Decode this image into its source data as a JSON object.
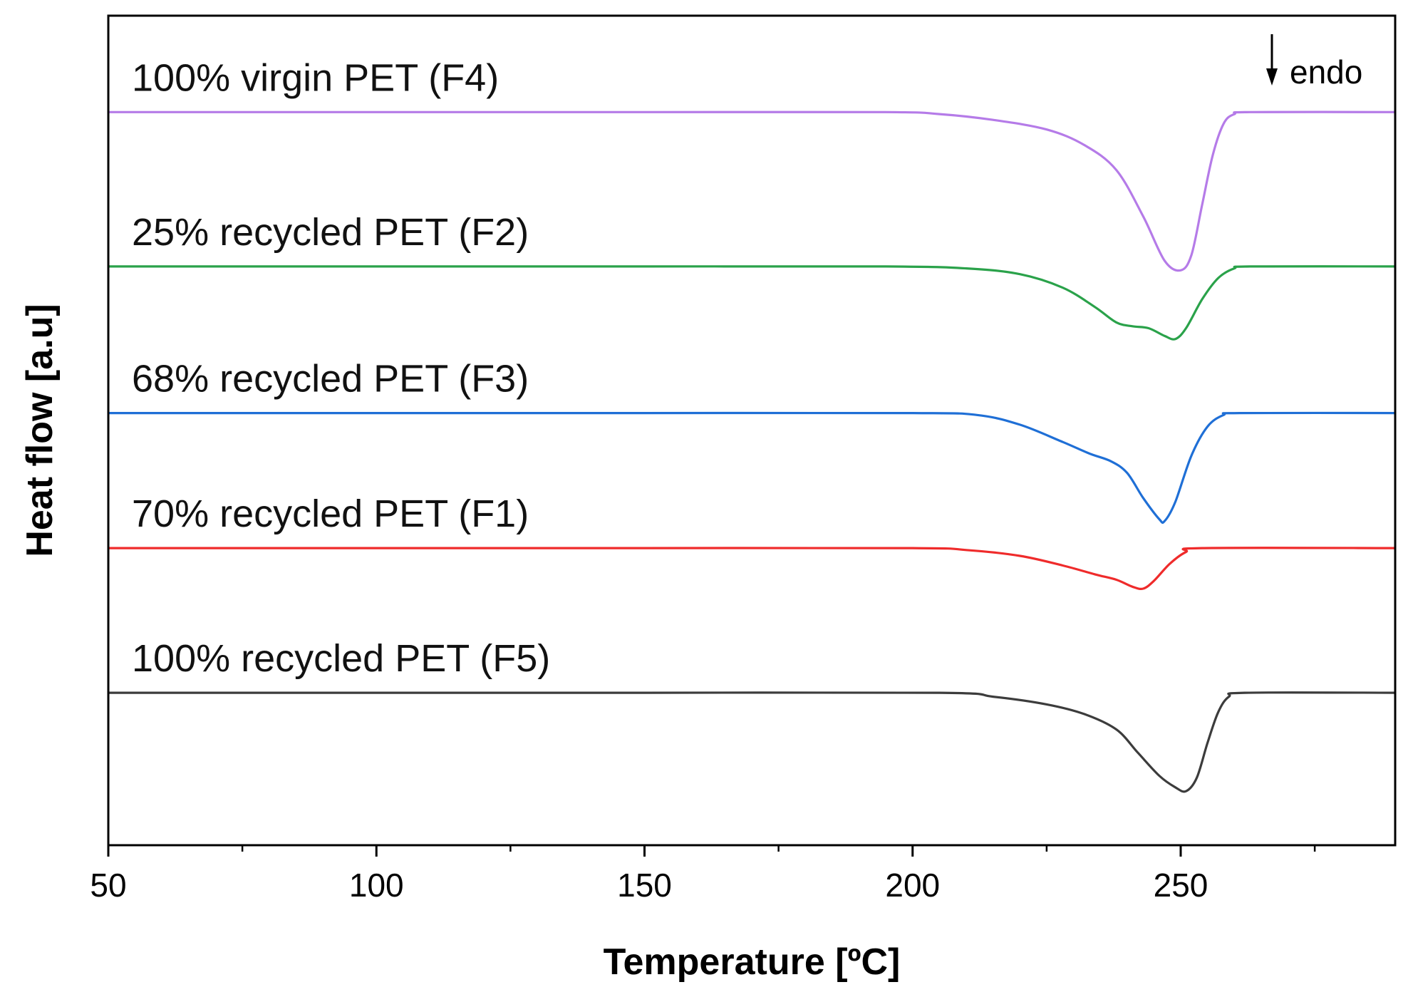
{
  "chart_data": {
    "type": "line",
    "title": "",
    "xlabel": "Temperature [ºC]",
    "ylabel": "Heat flow [a.u]",
    "xlim": [
      50,
      290
    ],
    "xticks": [
      50,
      100,
      150,
      200,
      250
    ],
    "yticks_shown": false,
    "grid": false,
    "annotation": {
      "text": "endo",
      "arrow": "down"
    },
    "series": [
      {
        "name": "100% virgin PET (F4)",
        "color": "#b57be8",
        "baseline": 10.0,
        "points": [
          [
            50,
            0
          ],
          [
            100,
            0
          ],
          [
            150,
            0
          ],
          [
            195,
            0
          ],
          [
            205,
            -0.05
          ],
          [
            215,
            -0.2
          ],
          [
            225,
            -0.45
          ],
          [
            232,
            -0.85
          ],
          [
            238,
            -1.5
          ],
          [
            243,
            -2.7
          ],
          [
            247,
            -3.85
          ],
          [
            250,
            -4.1
          ],
          [
            252,
            -3.7
          ],
          [
            254,
            -2.4
          ],
          [
            256,
            -1.1
          ],
          [
            258,
            -0.3
          ],
          [
            260,
            -0.05
          ],
          [
            263,
            0
          ],
          [
            290,
            0
          ]
        ]
      },
      {
        "name": "25% recycled PET (F2)",
        "color": "#2aa24a",
        "baseline": 6.0,
        "points": [
          [
            50,
            0
          ],
          [
            100,
            0
          ],
          [
            150,
            0
          ],
          [
            195,
            0
          ],
          [
            210,
            -0.05
          ],
          [
            220,
            -0.2
          ],
          [
            228,
            -0.55
          ],
          [
            234,
            -1.05
          ],
          [
            238,
            -1.45
          ],
          [
            241,
            -1.55
          ],
          [
            244,
            -1.6
          ],
          [
            247,
            -1.8
          ],
          [
            249,
            -1.88
          ],
          [
            251,
            -1.6
          ],
          [
            254,
            -0.85
          ],
          [
            257,
            -0.3
          ],
          [
            260,
            -0.05
          ],
          [
            263,
            0
          ],
          [
            290,
            0
          ]
        ]
      },
      {
        "name": "68% recycled PET (F3)",
        "color": "#1f6fd6",
        "baseline": 2.2,
        "points": [
          [
            50,
            0
          ],
          [
            100,
            0
          ],
          [
            150,
            0
          ],
          [
            200,
            0
          ],
          [
            212,
            -0.05
          ],
          [
            220,
            -0.3
          ],
          [
            228,
            -0.75
          ],
          [
            233,
            -1.05
          ],
          [
            237,
            -1.25
          ],
          [
            240,
            -1.55
          ],
          [
            243,
            -2.2
          ],
          [
            246,
            -2.75
          ],
          [
            247,
            -2.8
          ],
          [
            249,
            -2.3
          ],
          [
            252,
            -1.1
          ],
          [
            255,
            -0.35
          ],
          [
            258,
            -0.05
          ],
          [
            261,
            0
          ],
          [
            290,
            0
          ]
        ]
      },
      {
        "name": "70% recycled PET (F1)",
        "color": "#ef2b2b",
        "baseline": -1.3,
        "points": [
          [
            50,
            0
          ],
          [
            100,
            0
          ],
          [
            150,
            0
          ],
          [
            200,
            0
          ],
          [
            210,
            -0.05
          ],
          [
            220,
            -0.2
          ],
          [
            228,
            -0.45
          ],
          [
            234,
            -0.68
          ],
          [
            238,
            -0.82
          ],
          [
            241,
            -1.0
          ],
          [
            243,
            -1.05
          ],
          [
            245,
            -0.85
          ],
          [
            248,
            -0.4
          ],
          [
            251,
            -0.1
          ],
          [
            254,
            0
          ],
          [
            290,
            0
          ]
        ]
      },
      {
        "name": "100% recycled PET (F5)",
        "color": "#3c3c3c",
        "baseline": -5.05,
        "points": [
          [
            50,
            0
          ],
          [
            100,
            0
          ],
          [
            150,
            0
          ],
          [
            205,
            0
          ],
          [
            215,
            -0.1
          ],
          [
            225,
            -0.3
          ],
          [
            232,
            -0.55
          ],
          [
            238,
            -0.95
          ],
          [
            242,
            -1.55
          ],
          [
            246,
            -2.15
          ],
          [
            249,
            -2.45
          ],
          [
            251,
            -2.55
          ],
          [
            253,
            -2.2
          ],
          [
            255,
            -1.3
          ],
          [
            257,
            -0.5
          ],
          [
            259,
            -0.1
          ],
          [
            262,
            0
          ],
          [
            290,
            0
          ]
        ]
      }
    ]
  }
}
